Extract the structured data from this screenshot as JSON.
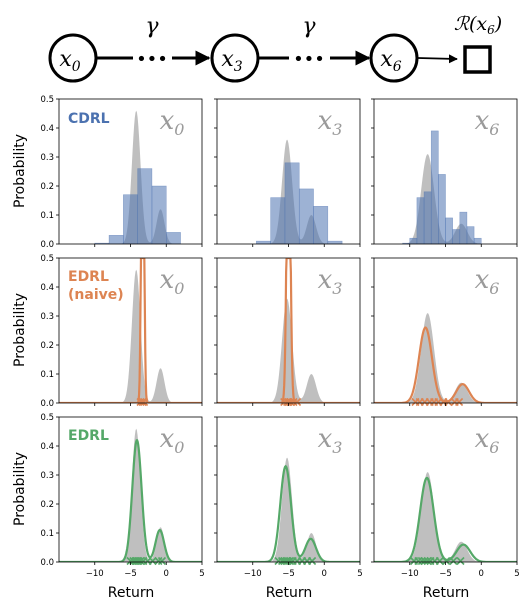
{
  "diagram": {
    "nodes": [
      "x",
      "x",
      "x"
    ],
    "node_subs": [
      "0",
      "3",
      "6"
    ],
    "gamma": [
      "γ",
      "γ"
    ],
    "ellipsis": "•••",
    "reward": {
      "main": "ℛ(x",
      "sub": "6",
      "close": ")"
    }
  },
  "labels": {
    "ylabel": "Probability",
    "xlabel": "Return",
    "rows": [
      {
        "name": "CDRL",
        "line2": "",
        "color": "#4c72b0"
      },
      {
        "name": "EDRL",
        "line2": "(naive)",
        "color": "#dd8452"
      },
      {
        "name": "EDRL",
        "line2": "",
        "color": "#55a868"
      }
    ],
    "col_states": [
      "x",
      "x",
      "x"
    ],
    "col_subs": [
      "0",
      "3",
      "6"
    ]
  },
  "chart_data": {
    "type": "area",
    "xlim": [
      -15,
      5
    ],
    "ylim": [
      0,
      0.5
    ],
    "xticks": [
      "−10",
      "−5",
      "0",
      "5"
    ],
    "yticks": [
      "0.0",
      "0.1",
      "0.2",
      "0.3",
      "0.4",
      "0.5"
    ],
    "colors": {
      "cdrl": "#4c72b0",
      "naive": "#dd8452",
      "edrl": "#55a868",
      "truth": "#bfbfbf"
    },
    "true_distributions": [
      {
        "state": "x0",
        "peaks": [
          [
            -4.2,
            0.6,
            0.46
          ],
          [
            -0.8,
            0.55,
            0.12
          ]
        ]
      },
      {
        "state": "x3",
        "peaks": [
          [
            -5.2,
            0.7,
            0.36
          ],
          [
            -1.8,
            0.65,
            0.1
          ]
        ]
      },
      {
        "state": "x6",
        "peaks": [
          [
            -7.5,
            0.9,
            0.31
          ],
          [
            -2.8,
            0.85,
            0.07
          ]
        ]
      }
    ],
    "cdrl_bars": [
      {
        "state": "x0",
        "bin_starts": [
          -10,
          -8,
          -6,
          -4,
          -2,
          0
        ],
        "width": 2,
        "values": [
          0.003,
          0.03,
          0.17,
          0.26,
          0.2,
          0.04
        ]
      },
      {
        "state": "x3",
        "bin_starts": [
          -9.5,
          -7.5,
          -5.5,
          -3.5,
          -1.5,
          0.5
        ],
        "width": 2,
        "values": [
          0.01,
          0.16,
          0.28,
          0.19,
          0.13,
          0.01
        ]
      },
      {
        "state": "x6",
        "bin_starts": [
          -11,
          -10,
          -9,
          -8,
          -7,
          -6,
          -5,
          -4,
          -3,
          -2,
          -1
        ],
        "width": 1,
        "values": [
          0.003,
          0.02,
          0.16,
          0.18,
          0.39,
          0.24,
          0.09,
          0.05,
          0.11,
          0.06,
          0.02
        ]
      }
    ],
    "edrl_naive": [
      {
        "state": "x0",
        "peaks": [
          [
            -3.3,
            0.18,
            1.4
          ]
        ],
        "expectiles": [
          -3.6,
          -3.3,
          -3.1
        ]
      },
      {
        "state": "x3",
        "peaks": [
          [
            -5.0,
            0.25,
            1.1
          ]
        ],
        "expectiles": [
          -5.6,
          -5.2,
          -5.0,
          -4.7,
          -4.3,
          -3.8
        ]
      },
      {
        "state": "x6",
        "peaks": [
          [
            -7.8,
            0.9,
            0.26
          ],
          [
            -2.6,
            0.9,
            0.065
          ]
        ],
        "expectiles": [
          -9.2,
          -8.6,
          -7.9,
          -7.2,
          -6.6,
          -6.0,
          -5.3,
          -4.6,
          -3.7,
          -3.1
        ]
      }
    ],
    "edrl_kde": [
      {
        "state": "x0",
        "peaks": [
          [
            -4.1,
            0.65,
            0.42
          ],
          [
            -0.9,
            0.6,
            0.11
          ]
        ],
        "expectiles": [
          -5.0,
          -4.6,
          -4.3,
          -4.1,
          -3.9,
          -3.6,
          -3.2,
          -2.6,
          -1.9,
          -1.1,
          -0.6
        ]
      },
      {
        "state": "x3",
        "peaks": [
          [
            -5.4,
            0.75,
            0.33
          ],
          [
            -1.9,
            0.75,
            0.08
          ]
        ],
        "expectiles": [
          -6.4,
          -5.9,
          -5.6,
          -5.3,
          -5.1,
          -4.8,
          -4.4,
          -3.8,
          -3.1,
          -2.4,
          -1.7
        ]
      },
      {
        "state": "x6",
        "peaks": [
          [
            -7.6,
            0.95,
            0.29
          ],
          [
            -2.5,
            0.95,
            0.06
          ]
        ],
        "expectiles": [
          -9.4,
          -8.8,
          -8.3,
          -7.9,
          -7.5,
          -7.1,
          -6.5,
          -5.8,
          -4.9,
          -3.9,
          -2.9
        ]
      }
    ]
  }
}
